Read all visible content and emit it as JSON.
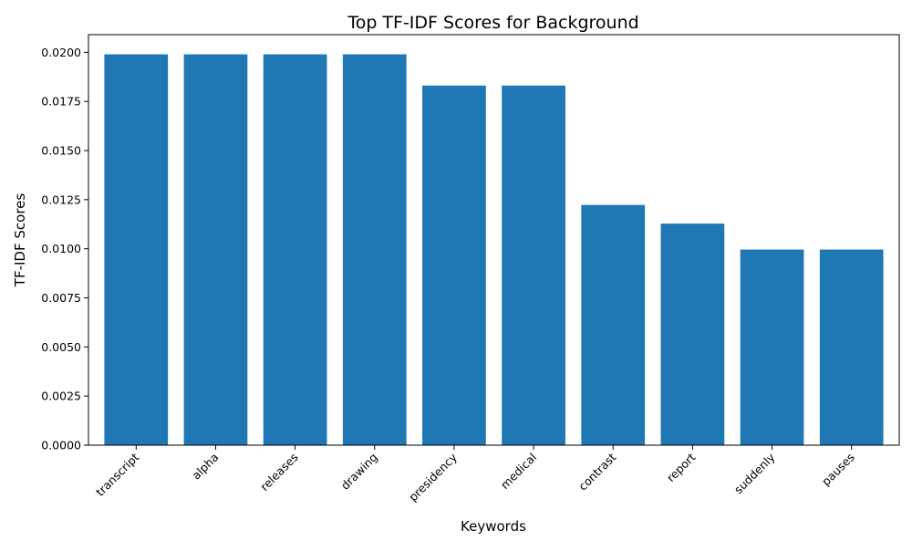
{
  "chart_data": {
    "type": "bar",
    "title": "Top TF-IDF Scores for Background",
    "xlabel": "Keywords",
    "ylabel": "TF-IDF Scores",
    "categories": [
      "transcript",
      "alpha",
      "releases",
      "drawing",
      "presidency",
      "medical",
      "contrast",
      "report",
      "suddenly",
      "pauses"
    ],
    "values": [
      0.0199,
      0.0199,
      0.0199,
      0.0199,
      0.01831,
      0.01831,
      0.01223,
      0.01128,
      0.00996,
      0.00996
    ],
    "ylim": [
      0,
      0.0209
    ],
    "yticks": [
      0.0,
      0.0025,
      0.005,
      0.0075,
      0.01,
      0.0125,
      0.015,
      0.0175,
      0.02
    ],
    "ytick_labels": [
      "0.0000",
      "0.0025",
      "0.0050",
      "0.0075",
      "0.0100",
      "0.0125",
      "0.0150",
      "0.0175",
      "0.0200"
    ],
    "grid": false,
    "legend": "none",
    "colors": {
      "bar": "#1f77b4",
      "axis": "#000000"
    }
  }
}
